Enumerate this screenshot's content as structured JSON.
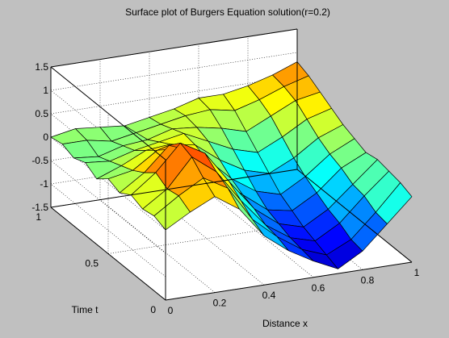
{
  "chart_data": {
    "type": "surface",
    "title": "Surface plot of Burgers Equation solution(r=0.2)",
    "xlabel": "Distance x",
    "ylabel": "Time t",
    "zlabel": "",
    "x_ticks": [
      0,
      0.2,
      0.4,
      0.6,
      0.8,
      1
    ],
    "y_ticks": [
      0,
      0.5,
      1
    ],
    "z_ticks": [
      -1.5,
      -1,
      -0.5,
      0,
      0.5,
      1,
      1.5
    ],
    "x_tick_labels": [
      "0",
      "0.2",
      "0.4",
      "0.6",
      "0.8",
      "1"
    ],
    "y_tick_labels": [
      "0",
      "0.5",
      "1"
    ],
    "z_tick_labels": [
      "-1.5",
      "-1",
      "-0.5",
      "0",
      "0.5",
      "1",
      "1.5"
    ],
    "xlim": [
      0,
      1
    ],
    "ylim": [
      0,
      1
    ],
    "zlim": [
      -1.5,
      1.5
    ],
    "grid": true,
    "colormap": "jet",
    "x": [
      0,
      0.1,
      0.2,
      0.3,
      0.4,
      0.5,
      0.6,
      0.7,
      0.8,
      0.9,
      1.0
    ],
    "t": [
      0,
      0.1,
      0.2,
      0.3,
      0.4,
      0.5,
      0.6,
      0.7,
      0.8,
      0.9,
      1.0
    ],
    "z": [
      [
        0.0,
        0.3,
        0.55,
        0.2,
        -0.45,
        -0.85,
        -1.15,
        -1.4,
        -1.1,
        -0.6,
        -0.1
      ],
      [
        0.1,
        0.45,
        0.75,
        0.45,
        -0.3,
        -0.75,
        -1.1,
        -1.3,
        -1.05,
        -0.55,
        0.0
      ],
      [
        0.05,
        0.4,
        1.0,
        0.6,
        -0.1,
        -0.7,
        -1.05,
        -1.2,
        -0.9,
        -0.4,
        0.05
      ],
      [
        0.15,
        0.55,
        1.1,
        0.8,
        0.1,
        -0.55,
        -0.95,
        -1.1,
        -0.8,
        -0.35,
        0.1
      ],
      [
        0.0,
        0.35,
        0.85,
        0.65,
        0.0,
        -0.45,
        -0.85,
        -0.95,
        -0.65,
        -0.2,
        0.05
      ],
      [
        0.1,
        0.2,
        0.55,
        0.5,
        0.2,
        -0.3,
        -0.65,
        -0.8,
        -0.5,
        -0.1,
        0.15
      ],
      [
        -0.1,
        0.1,
        0.35,
        0.4,
        0.3,
        -0.1,
        -0.4,
        -0.55,
        -0.3,
        0.05,
        0.25
      ],
      [
        0.05,
        0.0,
        0.15,
        0.25,
        0.35,
        0.1,
        -0.15,
        -0.3,
        -0.05,
        0.25,
        0.4
      ],
      [
        -0.05,
        -0.1,
        0.05,
        0.1,
        0.25,
        0.2,
        0.1,
        -0.05,
        0.2,
        0.45,
        0.55
      ],
      [
        0.05,
        0.05,
        -0.05,
        0.05,
        0.15,
        0.25,
        0.3,
        0.2,
        0.35,
        0.55,
        0.7
      ],
      [
        0.0,
        0.1,
        0.05,
        0.0,
        0.1,
        0.2,
        0.35,
        0.35,
        0.45,
        0.6,
        0.8
      ]
    ]
  }
}
